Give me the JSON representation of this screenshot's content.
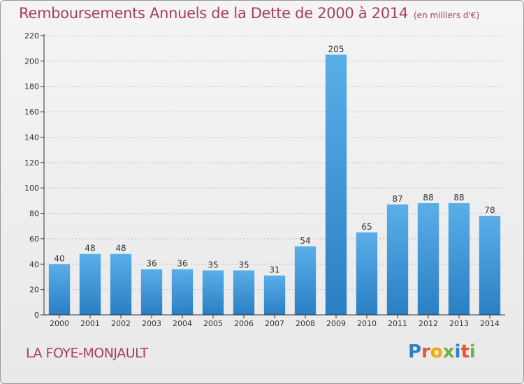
{
  "title": "Remboursements Annuels de la Dette de 2000 à 2014",
  "unit_note": "(en milliers d'€)",
  "place_name": "LA FOYE-MONJAULT",
  "logo": {
    "text": "Proxiti",
    "letters": [
      {
        "ch": "P",
        "color": "#2f7fc7"
      },
      {
        "ch": "r",
        "color": "#e4572e"
      },
      {
        "ch": "o",
        "color": "#f2a900"
      },
      {
        "ch": "x",
        "color": "#6bb43f"
      },
      {
        "ch": "i",
        "color": "#2f7fc7"
      },
      {
        "ch": "t",
        "color": "#e4572e"
      },
      {
        "ch": "i",
        "color": "#6bb43f"
      }
    ]
  },
  "colors": {
    "title": "#a93c64",
    "bar_light": "#5aaee8",
    "bar_dark": "#2a7fc4",
    "axis": "#333333",
    "grid": "#bdbdbd"
  },
  "chart_data": {
    "type": "bar",
    "title": "Remboursements Annuels de la Dette de 2000 à 2014",
    "categories": [
      "2000",
      "2001",
      "2002",
      "2003",
      "2004",
      "2005",
      "2006",
      "2007",
      "2008",
      "2009",
      "2010",
      "2011",
      "2012",
      "2013",
      "2014"
    ],
    "values": [
      40,
      48,
      48,
      36,
      36,
      35,
      35,
      31,
      54,
      205,
      65,
      87,
      88,
      88,
      78
    ],
    "ylim": [
      0,
      220
    ],
    "yticks": [
      0,
      20,
      40,
      60,
      80,
      100,
      120,
      140,
      160,
      180,
      200,
      220
    ],
    "grid": true,
    "xlabel": "",
    "ylabel": ""
  }
}
